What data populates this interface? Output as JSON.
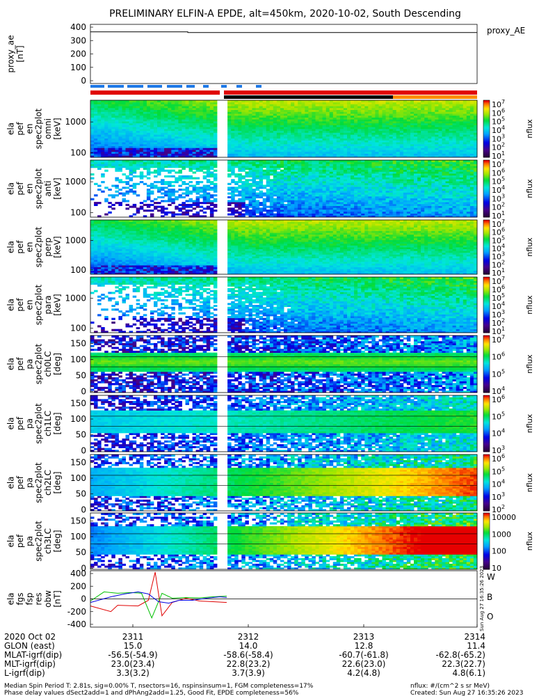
{
  "title": "PRELIMINARY ELFIN-A EPDE, alt=450km, 2020-10-02, South Descending",
  "colors": {
    "status_blue": "#1e78e6",
    "status_red": "#e00000",
    "status_black": "#000000",
    "status_orange": "#ff8c00",
    "wave_red": "#e00000",
    "wave_green": "#00c000",
    "wave_blue": "#0000e0"
  },
  "panels": [
    {
      "id": "proxy_ae",
      "ylabel_lines": [
        "proxy_ae",
        "[nT]"
      ],
      "right_label": "proxy_AE",
      "yticks": [
        "400",
        "300",
        "200",
        "100",
        "0"
      ]
    },
    {
      "id": "pef_en_omni",
      "ylabel_lines": [
        "ela",
        "pef",
        "en",
        "spec2plot",
        "omni",
        "[keV]"
      ],
      "yticks": [
        "1000",
        "100"
      ],
      "cbar_ticks": [
        "10^7",
        "10^6",
        "10^5",
        "10^4",
        "10^3",
        "10^2",
        "10^1"
      ],
      "cbar_label": "nflux"
    },
    {
      "id": "pef_en_anti",
      "ylabel_lines": [
        "ela",
        "pef",
        "en",
        "spec2plot",
        "anti",
        "[keV]"
      ],
      "yticks": [
        "1000",
        "100"
      ],
      "cbar_ticks": [
        "10^7",
        "10^6",
        "10^5",
        "10^4",
        "10^3",
        "10^2",
        "10^1"
      ],
      "cbar_label": "nflux"
    },
    {
      "id": "pef_en_perp",
      "ylabel_lines": [
        "ela",
        "pef",
        "en",
        "spec2plot",
        "perp",
        "[keV]"
      ],
      "yticks": [
        "1000",
        "100"
      ],
      "cbar_ticks": [
        "10^7",
        "10^6",
        "10^5",
        "10^4",
        "10^3",
        "10^2",
        "10^1"
      ],
      "cbar_label": "nflux"
    },
    {
      "id": "pef_en_para",
      "ylabel_lines": [
        "ela",
        "pef",
        "en",
        "spec2plot",
        "para",
        "[keV]"
      ],
      "yticks": [
        "1000",
        "100"
      ],
      "cbar_ticks": [
        "10^7",
        "10^6",
        "10^5",
        "10^4",
        "10^3",
        "10^2",
        "10^1"
      ],
      "cbar_label": "nflux"
    },
    {
      "id": "pef_pa_ch0LC",
      "ylabel_lines": [
        "ela",
        "pef",
        "pa",
        "spec2plot",
        "ch0LC",
        "[deg]"
      ],
      "yticks": [
        "150",
        "100",
        "50",
        "0"
      ],
      "cbar_ticks": [
        "10^7",
        "10^6",
        "10^5",
        "10^4"
      ],
      "cbar_label": "nflux"
    },
    {
      "id": "pef_pa_ch1LC",
      "ylabel_lines": [
        "ela",
        "pef",
        "pa",
        "spec2plot",
        "ch1LC",
        "[deg]"
      ],
      "yticks": [
        "150",
        "100",
        "50",
        "0"
      ],
      "cbar_ticks": [
        "10^6",
        "10^5",
        "10^4",
        "10^3"
      ],
      "cbar_label": "nflux"
    },
    {
      "id": "pef_pa_ch2LC",
      "ylabel_lines": [
        "ela",
        "pef",
        "pa",
        "spec2plot",
        "ch2LC",
        "[deg]"
      ],
      "yticks": [
        "150",
        "100",
        "50",
        "0"
      ],
      "cbar_ticks": [
        "10^6",
        "10^5",
        "10^4",
        "10^3",
        "10^2"
      ],
      "cbar_label": "nflux"
    },
    {
      "id": "pef_pa_ch3LC",
      "ylabel_lines": [
        "ela",
        "pef",
        "pa",
        "spec2plot",
        "ch3LC",
        "[deg]"
      ],
      "yticks": [
        "150",
        "100",
        "50",
        "0"
      ],
      "cbar_ticks": [
        "10000",
        "1000",
        "100",
        "10"
      ],
      "cbar_label": "nflux"
    },
    {
      "id": "fgs_res",
      "ylabel_lines": [
        "ela",
        "fgs",
        "fsp",
        "res",
        "obw",
        "[nT]"
      ],
      "yticks": [
        "400",
        "200",
        "0",
        "-200",
        "-400"
      ],
      "legend": [
        "W",
        "B",
        "O"
      ]
    }
  ],
  "chart_data": [
    {
      "type": "line",
      "title": "proxy_AE",
      "ylabel": "proxy_ae [nT]",
      "ylim": [
        0,
        400
      ],
      "x": [
        "2311",
        "2312",
        "2313",
        "2314"
      ],
      "series": [
        {
          "name": "proxy_AE",
          "values": [
            345,
            345,
            345,
            345
          ]
        }
      ]
    },
    {
      "type": "heatmap",
      "title": "ela pef en spec2plot omni",
      "ylabel": "[keV]",
      "yscale": "log",
      "ylim": [
        60,
        6000
      ]
    },
    {
      "type": "heatmap",
      "title": "ela pef en spec2plot anti",
      "ylabel": "[keV]",
      "yscale": "log",
      "ylim": [
        60,
        6000
      ]
    },
    {
      "type": "heatmap",
      "title": "ela pef en spec2plot perp",
      "ylabel": "[keV]",
      "yscale": "log",
      "ylim": [
        60,
        6000
      ]
    },
    {
      "type": "heatmap",
      "title": "ela pef en spec2plot para",
      "ylabel": "[keV]",
      "yscale": "log",
      "ylim": [
        60,
        6000
      ]
    },
    {
      "type": "heatmap",
      "title": "ela pef pa spec2plot ch0LC",
      "ylabel": "[deg]",
      "ylim": [
        0,
        180
      ]
    },
    {
      "type": "heatmap",
      "title": "ela pef pa spec2plot ch1LC",
      "ylabel": "[deg]",
      "ylim": [
        0,
        180
      ]
    },
    {
      "type": "heatmap",
      "title": "ela pef pa spec2plot ch2LC",
      "ylabel": "[deg]",
      "ylim": [
        0,
        180
      ]
    },
    {
      "type": "heatmap",
      "title": "ela pef pa spec2plot ch3LC",
      "ylabel": "[deg]",
      "ylim": [
        0,
        180
      ]
    },
    {
      "type": "line",
      "title": "ela fgs fsp res obw",
      "ylabel": "[nT]",
      "ylim": [
        -400,
        400
      ],
      "series": [
        {
          "name": "W",
          "values": [
            [
              -200,
              -100
            ],
            [
              -170,
              -180
            ],
            [
              -160,
              -90
            ],
            [
              -130,
              -100
            ],
            [
              -115,
              -20
            ],
            [
              -105,
              380
            ],
            [
              -95,
              -240
            ],
            [
              -80,
              -50
            ],
            [
              -60,
              10
            ],
            [
              -40,
              -30
            ],
            [
              -20,
              -40
            ],
            [
              0,
              -50
            ]
          ]
        },
        {
          "name": "B",
          "values": [
            [
              -200,
              -30
            ],
            [
              -180,
              100
            ],
            [
              -160,
              80
            ],
            [
              -140,
              90
            ],
            [
              -125,
              80
            ],
            [
              -110,
              -270
            ],
            [
              -95,
              80
            ],
            [
              -80,
              10
            ],
            [
              -60,
              20
            ],
            [
              -40,
              15
            ],
            [
              -20,
              30
            ],
            [
              0,
              40
            ]
          ]
        },
        {
          "name": "O",
          "values": [
            [
              -200,
              -50
            ],
            [
              -170,
              30
            ],
            [
              -150,
              70
            ],
            [
              -130,
              100
            ],
            [
              -115,
              70
            ],
            [
              -100,
              -40
            ],
            [
              -85,
              -60
            ],
            [
              -70,
              -20
            ],
            [
              -50,
              -20
            ],
            [
              -30,
              10
            ],
            [
              -10,
              30
            ],
            [
              0,
              20
            ]
          ]
        }
      ]
    }
  ],
  "footer": {
    "row_labels": [
      "2020 Oct 02",
      "GLON (east)",
      "MLAT-igrf(dip)",
      "MLT-igrf(dip)",
      "L-igrf(dip)"
    ],
    "columns": [
      {
        "time": "2311",
        "glon": "15.0",
        "mlat": "-56.5(-54.9)",
        "mlt": "23.0(23.4)",
        "l": "3.3(3.2)"
      },
      {
        "time": "2312",
        "glon": "14.0",
        "mlat": "-58.6(-58.4)",
        "mlt": "22.8(23.2)",
        "l": "3.7(3.9)"
      },
      {
        "time": "2313",
        "glon": "12.8",
        "mlat": "-60.7(-61.8)",
        "mlt": "22.6(23.0)",
        "l": "4.2(4.8)"
      },
      {
        "time": "2314",
        "glon": "11.4",
        "mlat": "-62.8(-65.2)",
        "mlt": "22.3(22.7)",
        "l": "4.8(6.1)"
      }
    ],
    "note1": "Median Spin Period T: 2.81s, sig=0.00% T, nsectors=16, nspinsinsum=1, FGM completeness=17%",
    "note2": "Phase delay values dSect2add=1 and dPhAng2add=1.25, Good Fit, EPDE completeness=56%",
    "unit_note": "nflux: #/(cm^2 s sr MeV)",
    "created": "Created: Sun Aug 27 16:35:26 2023",
    "side_stamp": "Sun Aug 27 16:35:26 2023"
  }
}
